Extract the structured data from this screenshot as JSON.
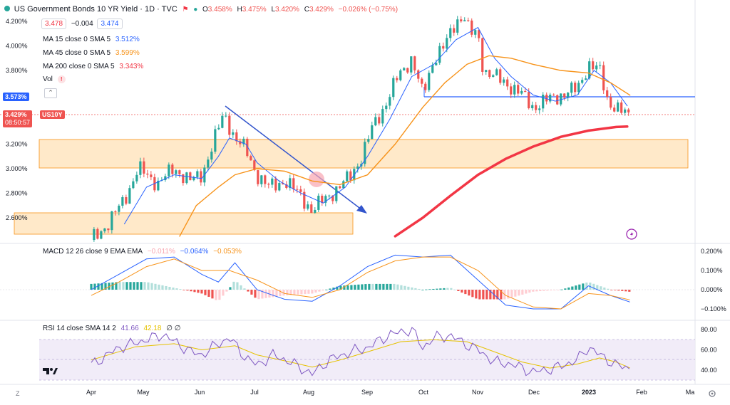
{
  "header": {
    "symbol_title": "US Government Bonds 10 YR Yield · 1D · TVC",
    "ohlc": {
      "O": "3.458%",
      "H": "3.475%",
      "L": "3.420%",
      "C": "3.429%",
      "change": "−0.026% (−0.75%)"
    },
    "bid": "3.478",
    "spread": "−0.004",
    "ask": "3.474"
  },
  "indicators": [
    {
      "label": "MA 15 close 0 SMA 5",
      "value": "3.512%",
      "color": "#2962ff"
    },
    {
      "label": "MA 45 close 0 SMA 5",
      "value": "3.599%",
      "color": "#f7931a"
    },
    {
      "label": "MA 200 close 0 SMA 5",
      "value": "3.343%",
      "color": "#f23645"
    },
    {
      "label": "Vol",
      "value": "",
      "color": "#787b86"
    }
  ],
  "price_tags": {
    "level": "3.573%",
    "last": "3.429%",
    "ticker": "US10Y",
    "countdown": "08:50:57"
  },
  "x_axis": [
    "Apr",
    "May",
    "Jun",
    "Jul",
    "Aug",
    "Sep",
    "Oct",
    "Nov",
    "Dec",
    "2023",
    "Feb",
    "Ma"
  ],
  "macd": {
    "label": "MACD 12 26 close 9 EMA EMA",
    "hist": "−0.011%",
    "macd_val": "−0.064%",
    "signal_val": "−0.053%",
    "ticks": [
      "0.200%",
      "0.100%",
      "0.000%",
      "−0.100%"
    ]
  },
  "rsi": {
    "label": "RSI 14 close SMA 14 2",
    "rsi_val": "41.66",
    "sma_val": "42.18",
    "extra": "∅ ∅",
    "ticks": [
      "80.00",
      "60.00",
      "40.00"
    ]
  },
  "chart_data": [
    {
      "type": "line",
      "title": "US Government Bonds 10 YR Yield · 1D · TVC",
      "ylabel": "",
      "ylim": [
        2.45,
        4.3
      ],
      "y_ticks": [
        "4.200%",
        "4.000%",
        "3.800%",
        "3.200%",
        "3.000%",
        "2.800%",
        "2.600%"
      ],
      "x_labels": [
        "Apr",
        "May",
        "Jun",
        "Jul",
        "Aug",
        "Sep",
        "Oct",
        "Nov",
        "Dec",
        "2023",
        "Feb",
        "Ma"
      ],
      "series": [
        {
          "name": "US10Y close",
          "points": [
            [
              0,
              2.42
            ],
            [
              0.3,
              2.55
            ],
            [
              0.6,
              2.75
            ],
            [
              0.85,
              3.0
            ],
            [
              1.0,
              2.95
            ],
            [
              1.2,
              2.88
            ],
            [
              1.5,
              3.0
            ],
            [
              1.8,
              2.9
            ],
            [
              2.0,
              2.95
            ],
            [
              2.2,
              3.2
            ],
            [
              2.4,
              3.45
            ],
            [
              2.6,
              3.25
            ],
            [
              2.8,
              3.15
            ],
            [
              3.0,
              2.95
            ],
            [
              3.2,
              2.85
            ],
            [
              3.5,
              2.9
            ],
            [
              3.8,
              2.78
            ],
            [
              4.0,
              2.65
            ],
            [
              4.2,
              2.75
            ],
            [
              4.5,
              2.85
            ],
            [
              4.7,
              2.95
            ],
            [
              4.9,
              3.1
            ],
            [
              5.1,
              3.35
            ],
            [
              5.3,
              3.5
            ],
            [
              5.55,
              3.75
            ],
            [
              5.8,
              3.9
            ],
            [
              6.0,
              3.6
            ],
            [
              6.2,
              3.9
            ],
            [
              6.4,
              4.0
            ],
            [
              6.6,
              4.2
            ],
            [
              6.75,
              4.25
            ],
            [
              6.85,
              4.1
            ],
            [
              7.0,
              4.1
            ],
            [
              7.1,
              3.8
            ],
            [
              7.3,
              3.75
            ],
            [
              7.5,
              3.7
            ],
            [
              7.8,
              3.6
            ],
            [
              8.0,
              3.5
            ],
            [
              8.2,
              3.55
            ],
            [
              8.5,
              3.6
            ],
            [
              8.8,
              3.65
            ],
            [
              9.0,
              3.85
            ],
            [
              9.2,
              3.8
            ],
            [
              9.35,
              3.55
            ],
            [
              9.5,
              3.5
            ],
            [
              9.7,
              3.429
            ]
          ]
        },
        {
          "name": "MA 15",
          "points": [
            [
              0.6,
              2.55
            ],
            [
              1.0,
              2.85
            ],
            [
              1.5,
              2.95
            ],
            [
              2.0,
              2.92
            ],
            [
              2.3,
              3.1
            ],
            [
              2.5,
              3.25
            ],
            [
              2.8,
              3.2
            ],
            [
              3.0,
              3.05
            ],
            [
              3.4,
              2.9
            ],
            [
              3.8,
              2.8
            ],
            [
              4.2,
              2.72
            ],
            [
              4.6,
              2.85
            ],
            [
              5.0,
              3.1
            ],
            [
              5.4,
              3.4
            ],
            [
              5.8,
              3.75
            ],
            [
              6.2,
              3.85
            ],
            [
              6.6,
              4.05
            ],
            [
              7.0,
              4.15
            ],
            [
              7.3,
              3.9
            ],
            [
              7.6,
              3.75
            ],
            [
              8.0,
              3.6
            ],
            [
              8.4,
              3.55
            ],
            [
              8.8,
              3.6
            ],
            [
              9.1,
              3.8
            ],
            [
              9.4,
              3.7
            ],
            [
              9.7,
              3.512
            ]
          ]
        },
        {
          "name": "MA 45",
          "points": [
            [
              1.6,
              2.45
            ],
            [
              1.9,
              2.7
            ],
            [
              2.3,
              2.85
            ],
            [
              2.6,
              2.95
            ],
            [
              3.0,
              3.0
            ],
            [
              3.5,
              2.98
            ],
            [
              4.0,
              2.9
            ],
            [
              4.5,
              2.87
            ],
            [
              5.0,
              2.95
            ],
            [
              5.5,
              3.2
            ],
            [
              6.0,
              3.5
            ],
            [
              6.4,
              3.7
            ],
            [
              6.8,
              3.85
            ],
            [
              7.2,
              3.92
            ],
            [
              7.6,
              3.9
            ],
            [
              8.0,
              3.85
            ],
            [
              8.5,
              3.8
            ],
            [
              9.0,
              3.78
            ],
            [
              9.4,
              3.7
            ],
            [
              9.75,
              3.599
            ]
          ]
        },
        {
          "name": "MA 200",
          "points": [
            [
              5.5,
              2.45
            ],
            [
              6.0,
              2.6
            ],
            [
              6.5,
              2.78
            ],
            [
              7.0,
              2.95
            ],
            [
              7.5,
              3.08
            ],
            [
              8.0,
              3.18
            ],
            [
              8.5,
              3.26
            ],
            [
              9.0,
              3.31
            ],
            [
              9.5,
              3.34
            ],
            [
              9.7,
              3.343
            ]
          ]
        }
      ]
    },
    {
      "type": "bar",
      "title": "MACD 12 26 close 9 EMA EMA",
      "ylim": [
        -0.12,
        0.22
      ],
      "y_ticks": [
        "0.200%",
        "0.100%",
        "0.000%",
        "−0.100%"
      ],
      "series": [
        {
          "name": "MACD",
          "points": [
            [
              0,
              -0.0
            ],
            [
              0.5,
              0.08
            ],
            [
              1.0,
              0.16
            ],
            [
              1.5,
              0.17
            ],
            [
              2.0,
              0.08
            ],
            [
              2.3,
              0.04
            ],
            [
              2.6,
              0.14
            ],
            [
              3.0,
              0.0
            ],
            [
              3.5,
              -0.05
            ],
            [
              4.0,
              -0.06
            ],
            [
              4.5,
              0.02
            ],
            [
              5.0,
              0.12
            ],
            [
              5.5,
              0.18
            ],
            [
              6.0,
              0.17
            ],
            [
              6.5,
              0.18
            ],
            [
              7.0,
              0.05
            ],
            [
              7.5,
              -0.08
            ],
            [
              8.0,
              -0.1
            ],
            [
              8.5,
              -0.1
            ],
            [
              9.0,
              0.02
            ],
            [
              9.4,
              -0.03
            ],
            [
              9.75,
              -0.064
            ]
          ]
        },
        {
          "name": "Signal",
          "points": [
            [
              0,
              -0.03
            ],
            [
              0.5,
              0.04
            ],
            [
              1.0,
              0.12
            ],
            [
              1.5,
              0.16
            ],
            [
              2.0,
              0.1
            ],
            [
              2.5,
              0.1
            ],
            [
              3.0,
              0.05
            ],
            [
              3.5,
              -0.02
            ],
            [
              4.0,
              -0.04
            ],
            [
              4.5,
              0.0
            ],
            [
              5.0,
              0.09
            ],
            [
              5.5,
              0.15
            ],
            [
              6.0,
              0.17
            ],
            [
              6.5,
              0.17
            ],
            [
              7.0,
              0.1
            ],
            [
              7.5,
              -0.03
            ],
            [
              8.0,
              -0.09
            ],
            [
              8.5,
              -0.1
            ],
            [
              9.0,
              -0.02
            ],
            [
              9.4,
              -0.03
            ],
            [
              9.75,
              -0.053
            ]
          ]
        }
      ]
    },
    {
      "type": "line",
      "title": "RSI 14 close SMA 14 2",
      "ylim": [
        28,
        84
      ],
      "y_ticks": [
        "80.00",
        "60.00",
        "40.00"
      ],
      "bands": [
        30,
        70
      ],
      "series": [
        {
          "name": "RSI",
          "points": [
            [
              0,
              45
            ],
            [
              0.5,
              62
            ],
            [
              1.0,
              70
            ],
            [
              1.3,
              75
            ],
            [
              1.8,
              58
            ],
            [
              2.0,
              55
            ],
            [
              2.3,
              66
            ],
            [
              2.5,
              72
            ],
            [
              2.8,
              52
            ],
            [
              3.0,
              45
            ],
            [
              3.3,
              55
            ],
            [
              3.6,
              48
            ],
            [
              4.0,
              36
            ],
            [
              4.3,
              50
            ],
            [
              4.7,
              58
            ],
            [
              5.0,
              62
            ],
            [
              5.4,
              75
            ],
            [
              5.8,
              80
            ],
            [
              6.0,
              62
            ],
            [
              6.2,
              72
            ],
            [
              6.5,
              74
            ],
            [
              6.8,
              65
            ],
            [
              7.0,
              60
            ],
            [
              7.3,
              48
            ],
            [
              7.6,
              46
            ],
            [
              8.0,
              38
            ],
            [
              8.4,
              42
            ],
            [
              8.8,
              50
            ],
            [
              9.0,
              63
            ],
            [
              9.2,
              55
            ],
            [
              9.5,
              45
            ],
            [
              9.75,
              41.66
            ]
          ]
        },
        {
          "name": "RSI SMA",
          "points": [
            [
              0,
              50
            ],
            [
              0.8,
              63
            ],
            [
              1.5,
              66
            ],
            [
              2.0,
              60
            ],
            [
              2.6,
              64
            ],
            [
              3.0,
              55
            ],
            [
              3.6,
              48
            ],
            [
              4.0,
              43
            ],
            [
              4.5,
              50
            ],
            [
              5.0,
              58
            ],
            [
              5.6,
              68
            ],
            [
              6.2,
              70
            ],
            [
              6.8,
              68
            ],
            [
              7.3,
              58
            ],
            [
              7.8,
              48
            ],
            [
              8.3,
              42
            ],
            [
              8.8,
              46
            ],
            [
              9.2,
              52
            ],
            [
              9.5,
              48
            ],
            [
              9.75,
              42.18
            ]
          ]
        }
      ]
    }
  ],
  "colors": {
    "up": "#26a69a",
    "down": "#ef5350",
    "ma15": "#2962ff",
    "ma45": "#f7931a",
    "ma200": "#f23645",
    "zone_fill": "#ffe0b2",
    "zone_stroke": "#f7931a",
    "trend": "#3355cc",
    "rsi_line": "#7e57c2",
    "rsi_band": "#ede7f6"
  },
  "icons": {
    "tv_logo": "tradingview-logo-icon",
    "lightning": "lightning-icon",
    "z_axis": "Z",
    "settings": "gear-icon"
  }
}
